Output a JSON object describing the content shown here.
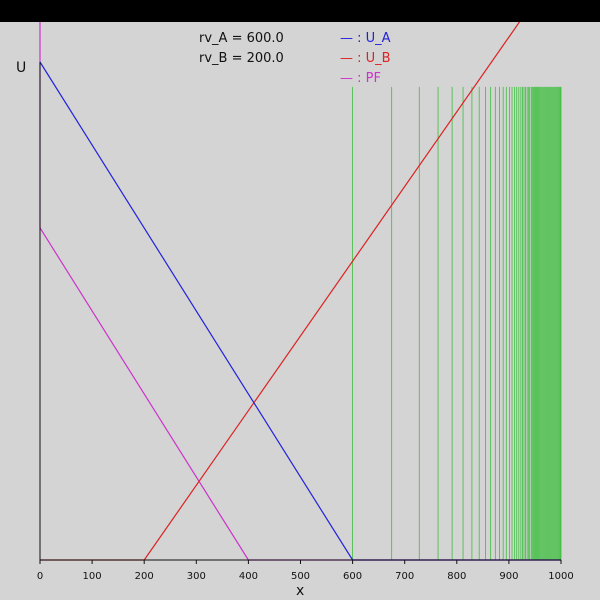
{
  "chart_data": {
    "type": "line",
    "xlabel": "x",
    "ylabel": "U",
    "xlim": [
      0,
      1000
    ],
    "x_ticks": [
      0,
      100,
      200,
      300,
      400,
      500,
      600,
      700,
      800,
      900,
      1000
    ],
    "params": [
      {
        "name": "rv_A",
        "text": "rv_A = 600.0"
      },
      {
        "name": "rv_B",
        "text": "rv_B = 200.0"
      }
    ],
    "legend_placement": "top-center",
    "series": [
      {
        "name": "U_A",
        "label": "— : U_A",
        "color": "#2222dd",
        "points": [
          [
            0,
            1.0
          ],
          [
            600,
            0.0
          ],
          [
            1000,
            0.0
          ]
        ]
      },
      {
        "name": "U_B",
        "label": "— : U_B",
        "color": "#dd2222",
        "points": [
          [
            0,
            0.0
          ],
          [
            200,
            0.0
          ],
          [
            1000,
            1.2
          ]
        ]
      },
      {
        "name": "PF",
        "label": "— : PF",
        "color": "#cc33cc",
        "points": [
          [
            0,
            0.667
          ],
          [
            400,
            0.0
          ],
          [
            1000,
            0.0
          ]
        ]
      }
    ],
    "pf_spike": {
      "x": 0,
      "y_from": 0.667,
      "y_to": 1.1
    },
    "green_lines": {
      "color": "#22bb22",
      "y_top": 0.95,
      "x": [
        600,
        675,
        728,
        764,
        791,
        812,
        829,
        843,
        855,
        865,
        874,
        882,
        889,
        895,
        901,
        906,
        911,
        915,
        919,
        923,
        926,
        929,
        932,
        935,
        938,
        940,
        943,
        945,
        947,
        949,
        951,
        953,
        955,
        957,
        959,
        961,
        963,
        965,
        967,
        969,
        971,
        973,
        975,
        977,
        979,
        981,
        983,
        985,
        987,
        989,
        991,
        993,
        995,
        997,
        999,
        1000
      ]
    }
  }
}
